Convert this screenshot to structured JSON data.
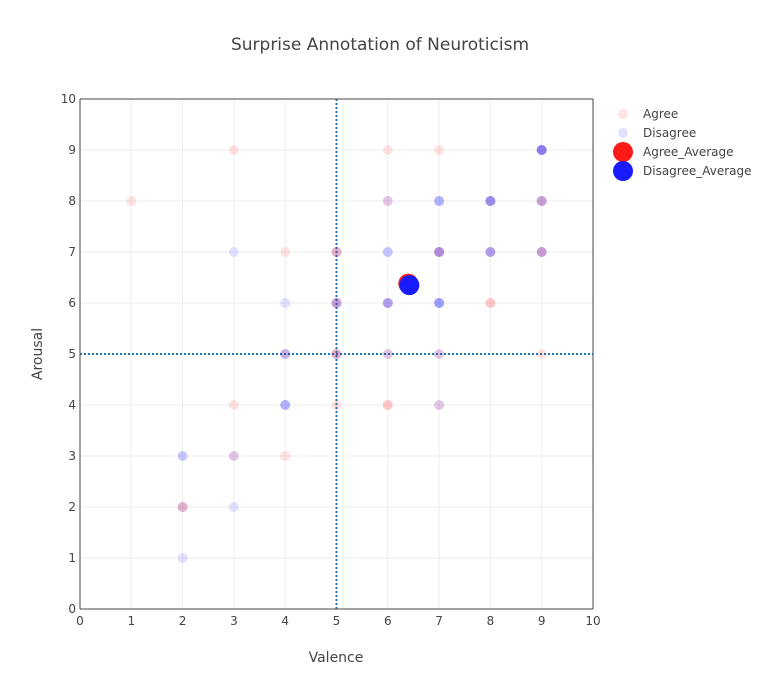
{
  "chart_data": {
    "type": "scatter",
    "title": "Surprise Annotation of Neuroticism",
    "xlabel": "Valence",
    "ylabel": "Arousal",
    "xlim": [
      0,
      10
    ],
    "ylim": [
      0,
      10
    ],
    "xticks": [
      "0",
      "1",
      "2",
      "3",
      "4",
      "5",
      "6",
      "7",
      "8",
      "9",
      "10"
    ],
    "yticks": [
      "0",
      "1",
      "2",
      "3",
      "4",
      "5",
      "6",
      "7",
      "8",
      "9",
      "10"
    ],
    "grid": true,
    "legend_position": "top-right",
    "reference_lines": {
      "x": 5,
      "y": 5,
      "color": "#1f77b4",
      "style": "dotted"
    },
    "series": [
      {
        "name": "Agree",
        "color": "#ff2020",
        "opacity_per_point": 0.13,
        "points": [
          [
            3,
            9,
            1
          ],
          [
            6,
            9,
            1
          ],
          [
            7,
            9,
            1
          ],
          [
            9,
            9,
            1
          ],
          [
            1,
            8,
            1
          ],
          [
            6,
            8,
            1
          ],
          [
            8,
            8,
            1
          ],
          [
            9,
            8,
            2
          ],
          [
            4,
            7,
            1
          ],
          [
            5,
            7,
            2
          ],
          [
            7,
            7,
            2
          ],
          [
            8,
            7,
            1
          ],
          [
            9,
            7,
            2
          ],
          [
            5,
            6,
            2
          ],
          [
            6,
            6,
            1
          ],
          [
            8,
            6,
            2
          ],
          [
            4,
            5,
            1
          ],
          [
            5,
            5,
            2
          ],
          [
            6,
            5,
            1
          ],
          [
            7,
            5,
            1
          ],
          [
            9,
            5,
            1
          ],
          [
            3,
            4,
            1
          ],
          [
            5,
            4,
            1
          ],
          [
            6,
            4,
            2
          ],
          [
            7,
            4,
            1
          ],
          [
            4,
            3,
            1
          ],
          [
            3,
            3,
            1
          ],
          [
            2,
            2,
            2
          ]
        ]
      },
      {
        "name": "Disagree",
        "color": "#2020ff",
        "opacity_per_point": 0.13,
        "points": [
          [
            9,
            9,
            5
          ],
          [
            6,
            8,
            1
          ],
          [
            7,
            8,
            3
          ],
          [
            8,
            8,
            4
          ],
          [
            9,
            8,
            2
          ],
          [
            3,
            7,
            1
          ],
          [
            5,
            7,
            1
          ],
          [
            6,
            7,
            2
          ],
          [
            7,
            7,
            3
          ],
          [
            8,
            7,
            3
          ],
          [
            9,
            7,
            2
          ],
          [
            4,
            6,
            1
          ],
          [
            5,
            6,
            2
          ],
          [
            6,
            6,
            3
          ],
          [
            7,
            6,
            4
          ],
          [
            4,
            5,
            2
          ],
          [
            5,
            5,
            1
          ],
          [
            6,
            5,
            1
          ],
          [
            7,
            5,
            1
          ],
          [
            4,
            4,
            3
          ],
          [
            7,
            4,
            1
          ],
          [
            2,
            3,
            2
          ],
          [
            3,
            3,
            1
          ],
          [
            3,
            2,
            1
          ],
          [
            2,
            2,
            1
          ],
          [
            2,
            1,
            1
          ]
        ]
      },
      {
        "name": "Agree_Average",
        "color": "#ff1a1a",
        "points": [
          [
            6.4,
            6.38,
            1
          ]
        ]
      },
      {
        "name": "Disagree_Average",
        "color": "#1a1aff",
        "points": [
          [
            6.42,
            6.35,
            1
          ]
        ]
      }
    ]
  }
}
